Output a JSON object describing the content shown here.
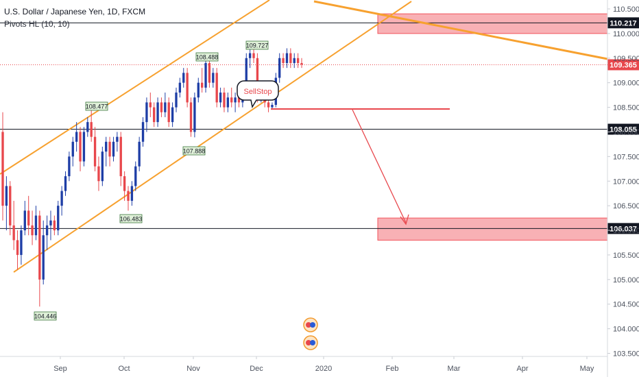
{
  "header": {
    "title": "U.S. Dollar / Japanese Yen, 1D, FXCM",
    "indicator": "Pivots HL (10, 10)"
  },
  "colors": {
    "bull": "#1e3ea6",
    "bear": "#e8474c",
    "channel": "#f7a12f",
    "zone_fill": "#f7a9ad",
    "zone_stroke": "#f2535a",
    "price_line": "#e8474c",
    "arrow": "#e8474c"
  },
  "annotation": {
    "sellstop": "SellStop"
  },
  "chart_data": {
    "type": "candlestick",
    "symbol": "USDJPY",
    "timeframe": "1D",
    "x_ticks": [
      "Sep",
      "Oct",
      "Nov",
      "Dec",
      "2020",
      "Feb",
      "Mar",
      "Apr",
      "May"
    ],
    "y_ticks": [
      "103.500",
      "104.000",
      "104.500",
      "105.000",
      "105.500",
      "106.000",
      "106.500",
      "107.000",
      "107.500",
      "108.000",
      "108.500",
      "109.000",
      "109.500",
      "110.000",
      "110.500"
    ],
    "ylim": [
      103.4,
      110.9
    ],
    "last_price": "109.365",
    "horizontal_levels": [
      "110.217",
      "108.055",
      "106.037"
    ],
    "pivot_labels": [
      "108.477",
      "108.488",
      "109.727",
      "107.888",
      "106.483",
      "104.446"
    ],
    "supply_zone": {
      "low": 110.0,
      "high": 110.4
    },
    "target_zone": {
      "low": 105.8,
      "high": 106.25
    },
    "candles": [
      [
        108.0,
        108.4,
        106.2,
        106.5
      ],
      [
        106.5,
        107.1,
        106.0,
        106.9
      ],
      [
        106.9,
        107.0,
        105.9,
        106.1
      ],
      [
        106.1,
        106.6,
        105.6,
        105.8
      ],
      [
        105.8,
        106.0,
        105.2,
        105.5
      ],
      [
        105.5,
        106.1,
        105.3,
        106.0
      ],
      [
        106.0,
        106.6,
        105.9,
        106.4
      ],
      [
        106.4,
        106.7,
        105.9,
        106.1
      ],
      [
        106.1,
        106.4,
        105.7,
        105.9
      ],
      [
        105.9,
        106.5,
        105.8,
        106.3
      ],
      [
        106.3,
        106.4,
        104.45,
        105.0
      ],
      [
        105.0,
        106.2,
        104.9,
        105.9
      ],
      [
        105.9,
        106.3,
        105.6,
        106.1
      ],
      [
        106.1,
        106.4,
        105.8,
        106.2
      ],
      [
        106.2,
        106.3,
        105.9,
        106.0
      ],
      [
        106.0,
        106.6,
        105.9,
        106.5
      ],
      [
        106.5,
        106.9,
        106.3,
        106.8
      ],
      [
        106.8,
        107.2,
        106.7,
        107.1
      ],
      [
        107.1,
        107.6,
        107.0,
        107.5
      ],
      [
        107.5,
        107.9,
        107.3,
        107.8
      ],
      [
        107.8,
        108.2,
        107.6,
        108.0
      ],
      [
        108.0,
        108.1,
        107.2,
        107.4
      ],
      [
        107.4,
        108.1,
        107.3,
        108.0
      ],
      [
        108.0,
        108.3,
        107.9,
        108.2
      ],
      [
        108.2,
        108.47,
        107.8,
        107.9
      ],
      [
        107.9,
        108.1,
        107.2,
        107.3
      ],
      [
        107.3,
        107.5,
        106.8,
        107.0
      ],
      [
        107.0,
        107.7,
        106.9,
        107.6
      ],
      [
        107.6,
        107.9,
        107.3,
        107.8
      ],
      [
        107.8,
        107.9,
        107.3,
        107.5
      ],
      [
        107.5,
        107.9,
        107.4,
        107.8
      ],
      [
        107.8,
        108.0,
        107.6,
        107.9
      ],
      [
        107.9,
        108.0,
        106.9,
        107.1
      ],
      [
        107.1,
        107.2,
        106.6,
        106.8
      ],
      [
        106.8,
        106.9,
        106.4,
        106.6
      ],
      [
        106.6,
        107.0,
        106.5,
        106.9
      ],
      [
        106.9,
        107.4,
        106.8,
        107.3
      ],
      [
        107.3,
        107.9,
        107.2,
        107.8
      ],
      [
        107.8,
        108.3,
        107.7,
        108.2
      ],
      [
        108.2,
        108.7,
        108.0,
        108.6
      ],
      [
        108.6,
        108.8,
        108.3,
        108.5
      ],
      [
        108.5,
        108.6,
        108.1,
        108.2
      ],
      [
        108.2,
        108.7,
        108.1,
        108.6
      ],
      [
        108.6,
        108.7,
        108.3,
        108.4
      ],
      [
        108.4,
        108.8,
        108.3,
        108.6
      ],
      [
        108.6,
        108.7,
        108.1,
        108.2
      ],
      [
        108.2,
        108.6,
        108.1,
        108.5
      ],
      [
        108.5,
        108.9,
        108.4,
        108.8
      ],
      [
        108.8,
        109.1,
        108.7,
        109.0
      ],
      [
        109.0,
        109.3,
        108.9,
        109.2
      ],
      [
        109.2,
        109.3,
        108.5,
        108.6
      ],
      [
        108.6,
        108.7,
        107.9,
        108.0
      ],
      [
        108.0,
        108.8,
        107.89,
        108.7
      ],
      [
        108.7,
        109.1,
        108.6,
        109.0
      ],
      [
        109.0,
        109.3,
        108.8,
        108.9
      ],
      [
        108.9,
        109.49,
        108.8,
        109.4
      ],
      [
        109.4,
        109.5,
        108.9,
        109.0
      ],
      [
        109.0,
        109.3,
        108.9,
        109.2
      ],
      [
        109.2,
        109.3,
        108.5,
        108.6
      ],
      [
        108.6,
        108.9,
        108.5,
        108.8
      ],
      [
        108.8,
        108.9,
        108.4,
        108.5
      ],
      [
        108.5,
        108.8,
        108.4,
        108.7
      ],
      [
        108.7,
        108.9,
        108.5,
        108.6
      ],
      [
        108.6,
        108.8,
        108.4,
        108.7
      ],
      [
        108.7,
        108.8,
        108.5,
        108.6
      ],
      [
        108.6,
        108.9,
        108.5,
        108.8
      ],
      [
        108.8,
        109.6,
        108.7,
        109.5
      ],
      [
        109.5,
        109.73,
        109.3,
        109.6
      ],
      [
        109.6,
        109.7,
        109.4,
        109.5
      ],
      [
        109.5,
        109.6,
        108.6,
        108.7
      ],
      [
        108.7,
        108.9,
        108.6,
        108.8
      ],
      [
        108.8,
        108.9,
        108.5,
        108.6
      ],
      [
        108.6,
        108.7,
        108.4,
        108.5
      ],
      [
        108.5,
        108.6,
        108.45,
        108.55
      ],
      [
        108.55,
        109.2,
        108.5,
        109.1
      ],
      [
        109.1,
        109.6,
        109.0,
        109.5
      ],
      [
        109.5,
        109.6,
        109.3,
        109.4
      ],
      [
        109.4,
        109.7,
        109.3,
        109.6
      ],
      [
        109.6,
        109.7,
        109.3,
        109.4
      ],
      [
        109.4,
        109.6,
        109.3,
        109.5
      ],
      [
        109.5,
        109.6,
        109.3,
        109.4
      ],
      [
        109.4,
        109.5,
        109.3,
        109.37
      ]
    ]
  }
}
